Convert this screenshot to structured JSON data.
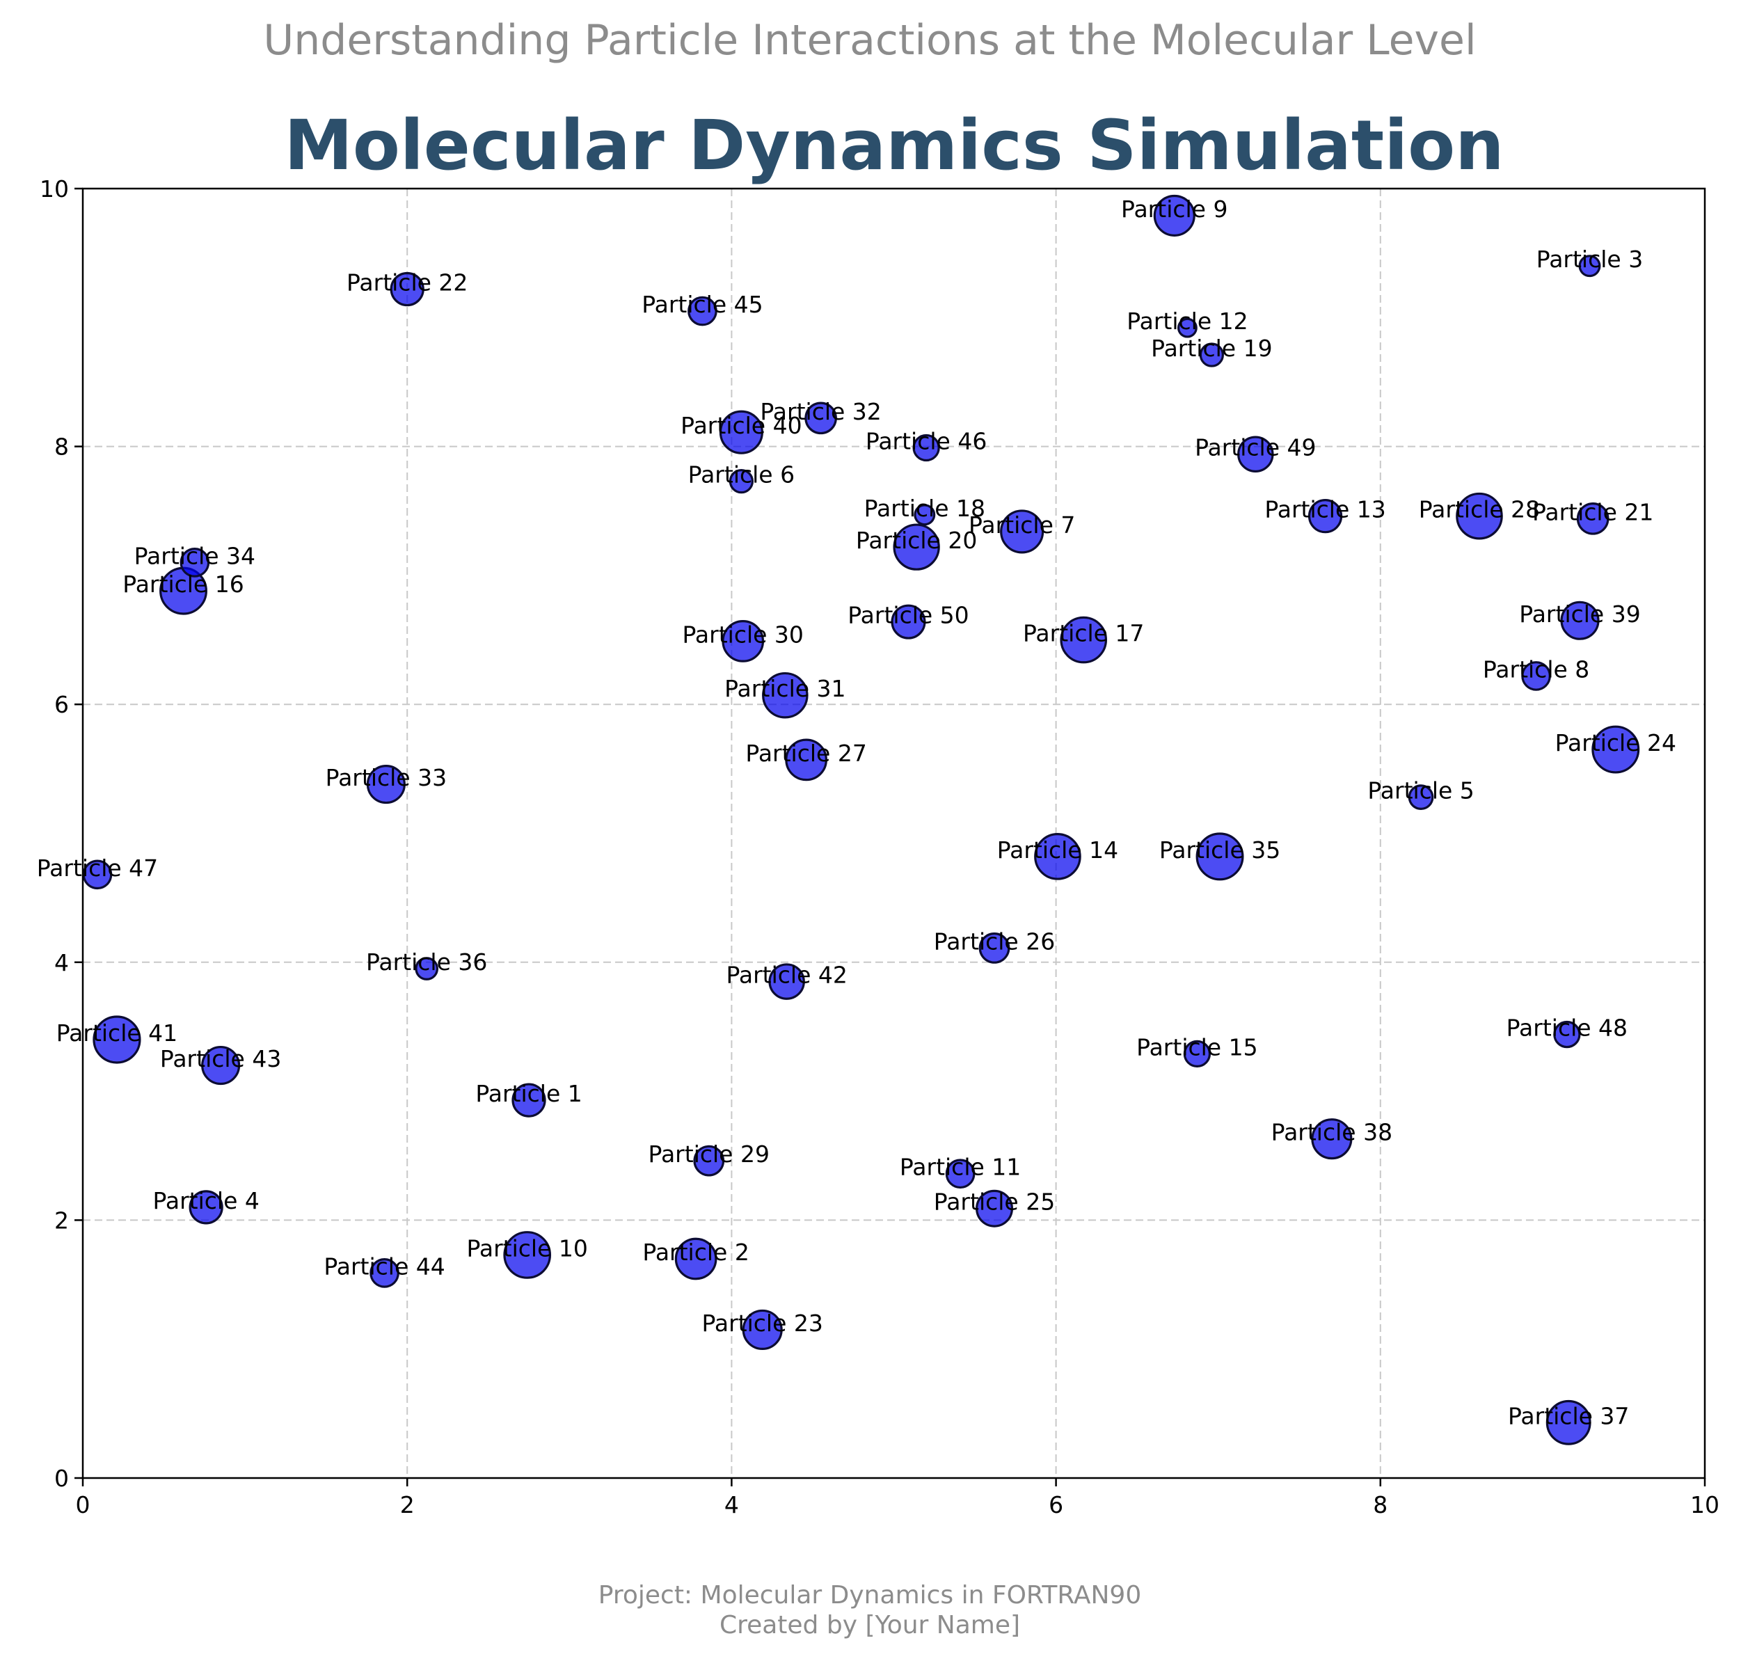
{
  "supertitle": "Understanding Particle Interactions at the Molecular Level",
  "footnote": {
    "line1": "Project: Molecular Dynamics in FORTRAN90",
    "line2": "Created by [Your Name]"
  },
  "colors": {
    "bubble_fill": "#0000ee",
    "bubble_edge": "#0c0c33",
    "title": "#2c4f6b",
    "muted_text": "#8c8c8c",
    "grid": "#c8c8c8"
  },
  "chart_data": {
    "type": "scatter",
    "title": "Molecular Dynamics Simulation",
    "xlabel": "",
    "ylabel": "",
    "xlim": [
      0,
      10
    ],
    "ylim": [
      0,
      10
    ],
    "xticks": [
      0,
      2,
      4,
      6,
      8,
      10
    ],
    "yticks": [
      0,
      2,
      4,
      6,
      8,
      10
    ],
    "grid": true,
    "marker_alpha": 0.7,
    "points": [
      {
        "label": "Particle 1",
        "x": 2.75,
        "y": 2.93,
        "size": 0.38
      },
      {
        "label": "Particle 2",
        "x": 3.78,
        "y": 1.7,
        "size": 0.7
      },
      {
        "label": "Particle 3",
        "x": 9.29,
        "y": 9.4,
        "size": 0.08
      },
      {
        "label": "Particle 4",
        "x": 0.76,
        "y": 2.1,
        "size": 0.38
      },
      {
        "label": "Particle 5",
        "x": 8.25,
        "y": 5.28,
        "size": 0.14
      },
      {
        "label": "Particle 6",
        "x": 4.06,
        "y": 7.73,
        "size": 0.12
      },
      {
        "label": "Particle 7",
        "x": 5.79,
        "y": 7.34,
        "size": 0.78
      },
      {
        "label": "Particle 8",
        "x": 8.96,
        "y": 6.22,
        "size": 0.24
      },
      {
        "label": "Particle 9",
        "x": 6.73,
        "y": 9.79,
        "size": 0.68
      },
      {
        "label": "Particle 10",
        "x": 2.74,
        "y": 1.73,
        "size": 0.98
      },
      {
        "label": "Particle 11",
        "x": 5.41,
        "y": 2.36,
        "size": 0.24
      },
      {
        "label": "Particle 12",
        "x": 6.81,
        "y": 8.92,
        "size": 0.05
      },
      {
        "label": "Particle 13",
        "x": 7.66,
        "y": 7.46,
        "size": 0.38
      },
      {
        "label": "Particle 14",
        "x": 6.01,
        "y": 4.82,
        "size": 0.94
      },
      {
        "label": "Particle 15",
        "x": 6.87,
        "y": 3.29,
        "size": 0.18
      },
      {
        "label": "Particle 16",
        "x": 0.62,
        "y": 6.88,
        "size": 0.99
      },
      {
        "label": "Particle 17",
        "x": 6.17,
        "y": 6.5,
        "size": 0.94
      },
      {
        "label": "Particle 18",
        "x": 5.19,
        "y": 7.47,
        "size": 0.07
      },
      {
        "label": "Particle 19",
        "x": 6.96,
        "y": 8.71,
        "size": 0.12
      },
      {
        "label": "Particle 20",
        "x": 5.14,
        "y": 7.22,
        "size": 0.93
      },
      {
        "label": "Particle 21",
        "x": 9.31,
        "y": 7.44,
        "size": 0.32
      },
      {
        "label": "Particle 22",
        "x": 2.0,
        "y": 9.22,
        "size": 0.38
      },
      {
        "label": "Particle 23",
        "x": 4.19,
        "y": 1.15,
        "size": 0.62
      },
      {
        "label": "Particle 24",
        "x": 9.45,
        "y": 5.65,
        "size": 0.99
      },
      {
        "label": "Particle 25",
        "x": 5.62,
        "y": 2.09,
        "size": 0.5
      },
      {
        "label": "Particle 26",
        "x": 5.62,
        "y": 4.11,
        "size": 0.28
      },
      {
        "label": "Particle 27",
        "x": 4.46,
        "y": 5.57,
        "size": 0.7
      },
      {
        "label": "Particle 28",
        "x": 8.61,
        "y": 7.46,
        "size": 0.94
      },
      {
        "label": "Particle 29",
        "x": 3.86,
        "y": 2.46,
        "size": 0.28
      },
      {
        "label": "Particle 30",
        "x": 4.07,
        "y": 6.49,
        "size": 0.7
      },
      {
        "label": "Particle 31",
        "x": 4.33,
        "y": 6.07,
        "size": 0.9
      },
      {
        "label": "Particle 32",
        "x": 4.55,
        "y": 8.22,
        "size": 0.32
      },
      {
        "label": "Particle 33",
        "x": 1.87,
        "y": 5.38,
        "size": 0.56
      },
      {
        "label": "Particle 34",
        "x": 0.69,
        "y": 7.1,
        "size": 0.24
      },
      {
        "label": "Particle 35",
        "x": 7.01,
        "y": 4.82,
        "size": 0.99
      },
      {
        "label": "Particle 36",
        "x": 2.12,
        "y": 3.95,
        "size": 0.1
      },
      {
        "label": "Particle 37",
        "x": 9.16,
        "y": 0.43,
        "size": 0.84
      },
      {
        "label": "Particle 38",
        "x": 7.7,
        "y": 2.63,
        "size": 0.65
      },
      {
        "label": "Particle 39",
        "x": 9.23,
        "y": 6.65,
        "size": 0.56
      },
      {
        "label": "Particle 40",
        "x": 4.06,
        "y": 8.11,
        "size": 0.78
      },
      {
        "label": "Particle 41",
        "x": 0.21,
        "y": 3.4,
        "size": 1.0
      },
      {
        "label": "Particle 42",
        "x": 4.34,
        "y": 3.85,
        "size": 0.46
      },
      {
        "label": "Particle 43",
        "x": 0.85,
        "y": 3.2,
        "size": 0.56
      },
      {
        "label": "Particle 44",
        "x": 1.86,
        "y": 1.59,
        "size": 0.24
      },
      {
        "label": "Particle 45",
        "x": 3.82,
        "y": 9.05,
        "size": 0.24
      },
      {
        "label": "Particle 46",
        "x": 5.2,
        "y": 7.99,
        "size": 0.18
      },
      {
        "label": "Particle 47",
        "x": 0.09,
        "y": 4.68,
        "size": 0.24
      },
      {
        "label": "Particle 48",
        "x": 9.15,
        "y": 3.44,
        "size": 0.18
      },
      {
        "label": "Particle 49",
        "x": 7.23,
        "y": 7.94,
        "size": 0.46
      },
      {
        "label": "Particle 50",
        "x": 5.09,
        "y": 6.64,
        "size": 0.4
      }
    ]
  }
}
